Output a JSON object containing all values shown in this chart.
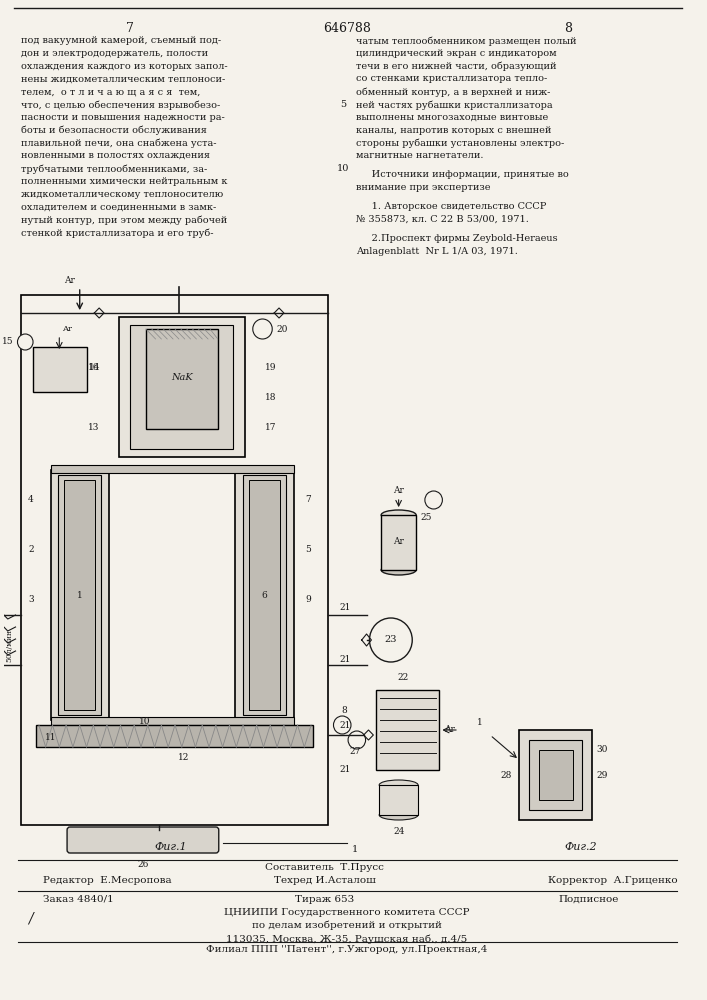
{
  "page_number_left": "7",
  "patent_number": "646788",
  "page_number_right": "8",
  "bg_color": "#f5f2eb",
  "text_color": "#1a1a1a",
  "col_left_text": [
    "под вакуумной камерой, съемный под-",
    "дон и электрододержатель, полости",
    "охлаждения каждого из которых запол-",
    "нены жидкометаллическим теплоноси-",
    "телем,  о т л и ч а ю щ а я с я  тем,",
    "что, с целью обеспечения взрывобезо-",
    "пасности и повышения надежности ра-",
    "боты и безопасности обслуживания",
    "плавильной печи, она снабжена уста-",
    "новленными в полостях охлаждения",
    "трубчатыми теплообменниками, за-",
    "полненными химически нейтральным к",
    "жидкометаллическому теплоносителю",
    "охладителем и соединенными в замк-",
    "нутый контур, при этом между рабочей",
    "стенкой кристаллизатора и его труб-"
  ],
  "col_right_text": [
    "чатым теплообменником размещен полый",
    "цилиндрический экран с индикатором",
    "течи в его нижней части, образующий",
    "со стенками кристаллизатора тепло-",
    "обменный контур, а в верхней и ниж-",
    "ней частях рубашки кристаллизатора",
    "выполнены многозаходные винтовые",
    "каналы, напротив которых с внешней",
    "стороны рубашки установлены электро-",
    "магнитные нагнетатели."
  ],
  "line_num_right": "5",
  "line_num_right2": "10",
  "sources_header": "     Источники информации, принятые во",
  "sources_subheader": "внимание при экспертизе",
  "source1": "     1. Авторское свидетельство СССР",
  "source2": "№ 355873, кл. С 22 В 53/00, 1971.",
  "source3": "     2.Проспект фирмы Zeybold-Heraeus",
  "source4": "Anlagenblatt  Nr L 1/A 03, 1971.",
  "fig1_label": "Фиг.1",
  "fig2_label": "Фиг.2",
  "editor_label": "Редактор  Е.Месропова",
  "composer_label": "Составитель  Т.Прусс",
  "techred_label": "Техред И.Асталош",
  "corrector_label": "Корректор  А.Гриценко",
  "order_label": "Заказ 4840/1",
  "circulation_label": "Тираж 653",
  "subscription_label": "Подписное",
  "org_line1": "ЦНИИПИ Государственного комитета СССР",
  "org_line2": "по делам изобретений и открытий",
  "org_line3": "113035, Москва, Ж-35, Раушская наб., д.4/5",
  "branch_line": "Филиал ППП ''Патент'', г.Ужгород, ул.Проектная,4",
  "checkmark": "/"
}
